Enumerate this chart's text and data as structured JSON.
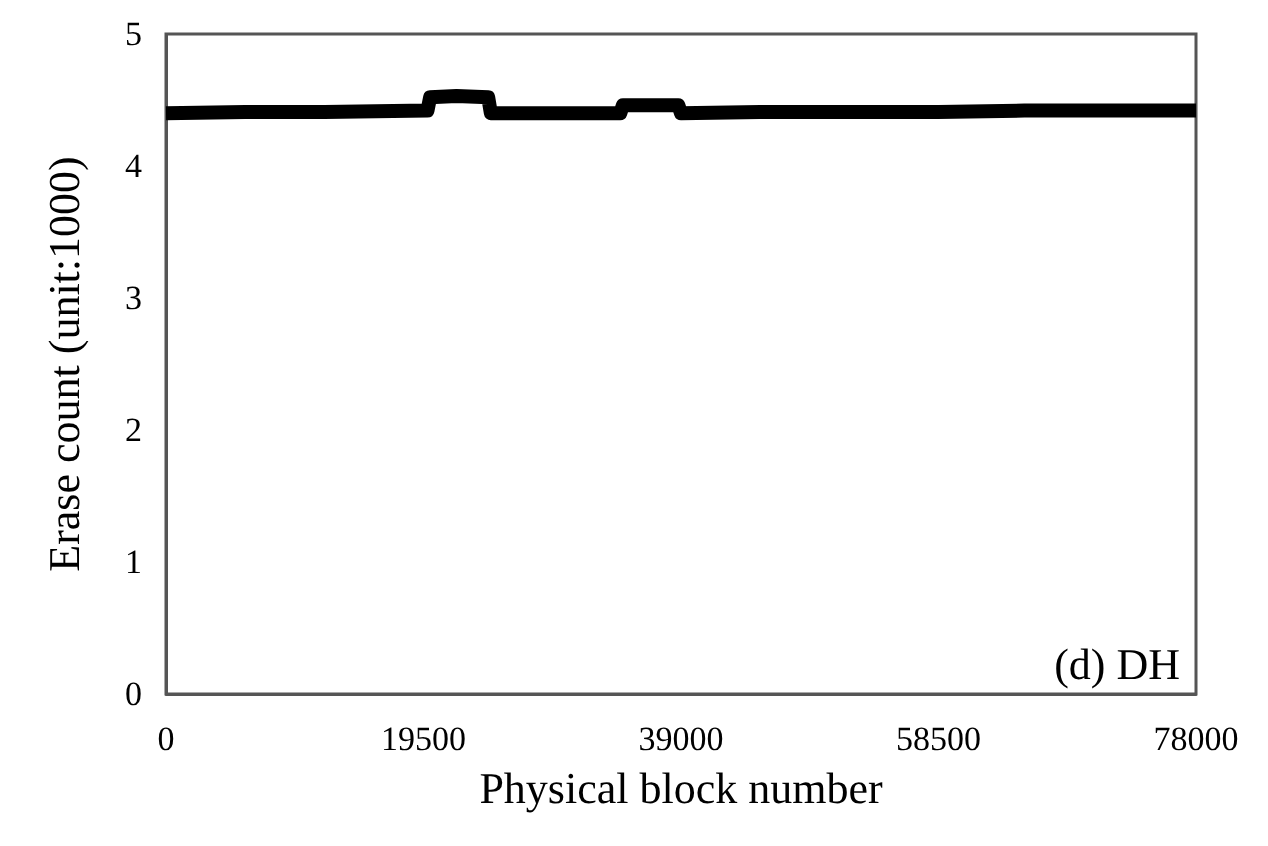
{
  "chart_data": {
    "type": "line",
    "xlabel": "Physical block number",
    "ylabel": "Erase count (unit:1000)",
    "annotations": [
      "(d) DH"
    ],
    "xlim": [
      0,
      78000
    ],
    "xticks": [
      0,
      19500,
      39000,
      58500,
      78000
    ],
    "ylim": [
      0,
      5
    ],
    "yticks": [
      0,
      1,
      2,
      3,
      4,
      5
    ],
    "grid": false,
    "marker": "none",
    "line_style": "solid",
    "series": [
      {
        "color": "#000000",
        "x": [
          0,
          6000,
          12000,
          19800,
          20000,
          22000,
          24400,
          24600,
          29000,
          34400,
          34600,
          38800,
          39000,
          45000,
          52000,
          58500,
          65000,
          72000,
          78000
        ],
        "values": [
          4.4,
          4.41,
          4.41,
          4.42,
          4.52,
          4.53,
          4.52,
          4.4,
          4.4,
          4.4,
          4.46,
          4.46,
          4.4,
          4.41,
          4.41,
          4.41,
          4.42,
          4.42,
          4.42
        ]
      }
    ]
  }
}
